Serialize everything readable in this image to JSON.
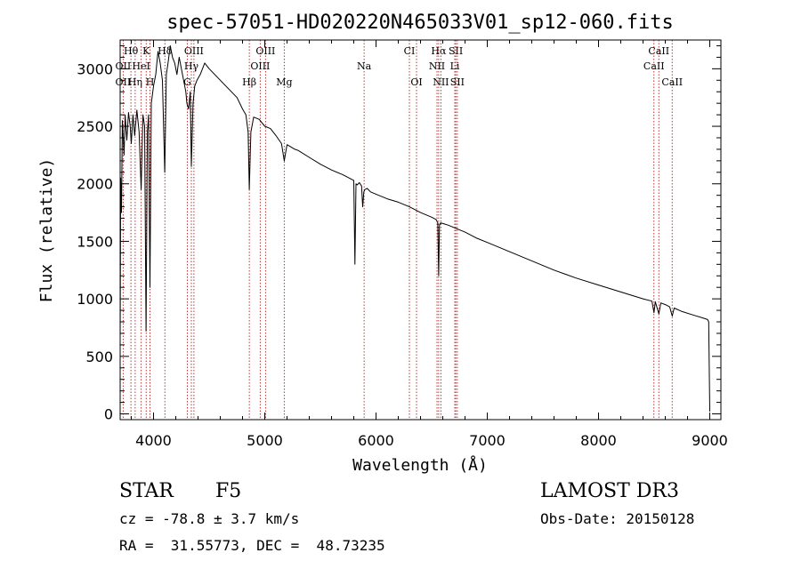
{
  "chart_data": {
    "type": "line",
    "title": "spec-57051-HD020220N465033V01_sp12-060.fits",
    "xlabel": "Wavelength (Å)",
    "ylabel": "Flux (relative)",
    "xlim": [
      3700,
      9100
    ],
    "ylim": [
      -50,
      3250
    ],
    "xticks": [
      4000,
      5000,
      6000,
      7000,
      8000,
      9000
    ],
    "yticks": [
      0,
      500,
      1000,
      1500,
      2000,
      2500,
      3000
    ],
    "series": [
      {
        "name": "spectrum",
        "x": [
          3700,
          3705,
          3712,
          3720,
          3735,
          3745,
          3760,
          3775,
          3790,
          3800,
          3815,
          3830,
          3850,
          3870,
          3889,
          3905,
          3920,
          3933,
          3945,
          3955,
          3968,
          3980,
          4000,
          4020,
          4040,
          4060,
          4080,
          4101,
          4115,
          4130,
          4150,
          4170,
          4190,
          4210,
          4230,
          4250,
          4270,
          4290,
          4300,
          4315,
          4330,
          4340,
          4355,
          4370,
          4390,
          4420,
          4460,
          4500,
          4550,
          4600,
          4650,
          4700,
          4750,
          4800,
          4830,
          4850,
          4861,
          4875,
          4900,
          4950,
          5000,
          5050,
          5100,
          5150,
          5175,
          5200,
          5270,
          5300,
          5400,
          5500,
          5600,
          5700,
          5800,
          5810,
          5820,
          5830,
          5850,
          5870,
          5880,
          5890,
          5900,
          5920,
          5950,
          6000,
          6100,
          6200,
          6300,
          6400,
          6450,
          6500,
          6540,
          6555,
          6563,
          6570,
          6580,
          6600,
          6650,
          6700,
          6800,
          6900,
          7000,
          7200,
          7400,
          7600,
          7800,
          8000,
          8200,
          8400,
          8480,
          8498,
          8510,
          8542,
          8560,
          8600,
          8640,
          8662,
          8680,
          8750,
          8850,
          8950,
          8980,
          8990,
          9000
        ],
        "values": [
          650,
          2050,
          1750,
          2550,
          2250,
          2600,
          2380,
          2620,
          2500,
          2350,
          2600,
          2420,
          2640,
          2450,
          1950,
          2600,
          2500,
          720,
          2450,
          2600,
          1100,
          2700,
          2850,
          2950,
          3150,
          3050,
          2900,
          2100,
          2950,
          3050,
          3200,
          3100,
          3050,
          2950,
          3100,
          3000,
          2900,
          2800,
          2700,
          2650,
          2800,
          2150,
          2700,
          2850,
          2900,
          2950,
          3050,
          3000,
          2950,
          2900,
          2850,
          2800,
          2750,
          2650,
          2600,
          2450,
          1950,
          2450,
          2580,
          2560,
          2500,
          2480,
          2420,
          2350,
          2200,
          2340,
          2300,
          2290,
          2230,
          2170,
          2120,
          2080,
          2030,
          1300,
          2000,
          1990,
          2010,
          1980,
          1800,
          1930,
          1950,
          1960,
          1930,
          1910,
          1870,
          1840,
          1800,
          1750,
          1730,
          1710,
          1690,
          1660,
          1200,
          1640,
          1660,
          1655,
          1640,
          1620,
          1580,
          1530,
          1490,
          1410,
          1330,
          1250,
          1180,
          1120,
          1060,
          1000,
          980,
          880,
          975,
          870,
          965,
          950,
          930,
          850,
          920,
          890,
          860,
          830,
          820,
          800,
          20
        ]
      }
    ],
    "line_markers": [
      {
        "label": "Hθ",
        "x": 3797,
        "row": 1
      },
      {
        "label": "K",
        "x": 3934,
        "row": 1
      },
      {
        "label": "Hδ",
        "x": 4102,
        "row": 1
      },
      {
        "label": "OIII",
        "x": 4363,
        "row": 1
      },
      {
        "label": "OIII",
        "x": 5007,
        "row": 1
      },
      {
        "label": "CI",
        "x": 6300,
        "row": 1
      },
      {
        "label": "Hα",
        "x": 6563,
        "row": 1
      },
      {
        "label": "SII",
        "x": 6717,
        "row": 1
      },
      {
        "label": "CaII",
        "x": 8542,
        "row": 1
      },
      {
        "label": "OII",
        "x": 3727,
        "row": 2
      },
      {
        "label": "HeI",
        "x": 3889,
        "row": 2
      },
      {
        "label": "Hγ",
        "x": 4340,
        "row": 2
      },
      {
        "label": "OIII",
        "x": 4959,
        "row": 2
      },
      {
        "label": "Na",
        "x": 5893,
        "row": 2
      },
      {
        "label": "NII",
        "x": 6548,
        "row": 2
      },
      {
        "label": "Li",
        "x": 6708,
        "row": 2
      },
      {
        "label": "CaII",
        "x": 8498,
        "row": 2
      },
      {
        "label": "OII",
        "x": 3727,
        "row": 3
      },
      {
        "label": "Hη",
        "x": 3835,
        "row": 3
      },
      {
        "label": "H",
        "x": 3968,
        "row": 3
      },
      {
        "label": "G",
        "x": 4304,
        "row": 3
      },
      {
        "label": "Hβ",
        "x": 4861,
        "row": 3
      },
      {
        "label": "Mg",
        "x": 5175,
        "row": 3
      },
      {
        "label": "OI",
        "x": 6364,
        "row": 3
      },
      {
        "label": "NII",
        "x": 6583,
        "row": 3
      },
      {
        "label": "SII",
        "x": 6731,
        "row": 3
      },
      {
        "label": "CaII",
        "x": 8662,
        "row": 3
      }
    ],
    "grid": false,
    "legend": "none"
  },
  "info": {
    "object_type": "STAR",
    "subclass": "F5",
    "survey": "LAMOST DR3",
    "cz": "cz = -78.8 ± 3.7 km/s",
    "obs_date": "Obs-Date: 20150128",
    "coords": "RA =  31.55773, DEC =  48.73235"
  },
  "colors": {
    "spectrum": "#000000",
    "marker": "#b22222",
    "marker_text": "#000000"
  }
}
